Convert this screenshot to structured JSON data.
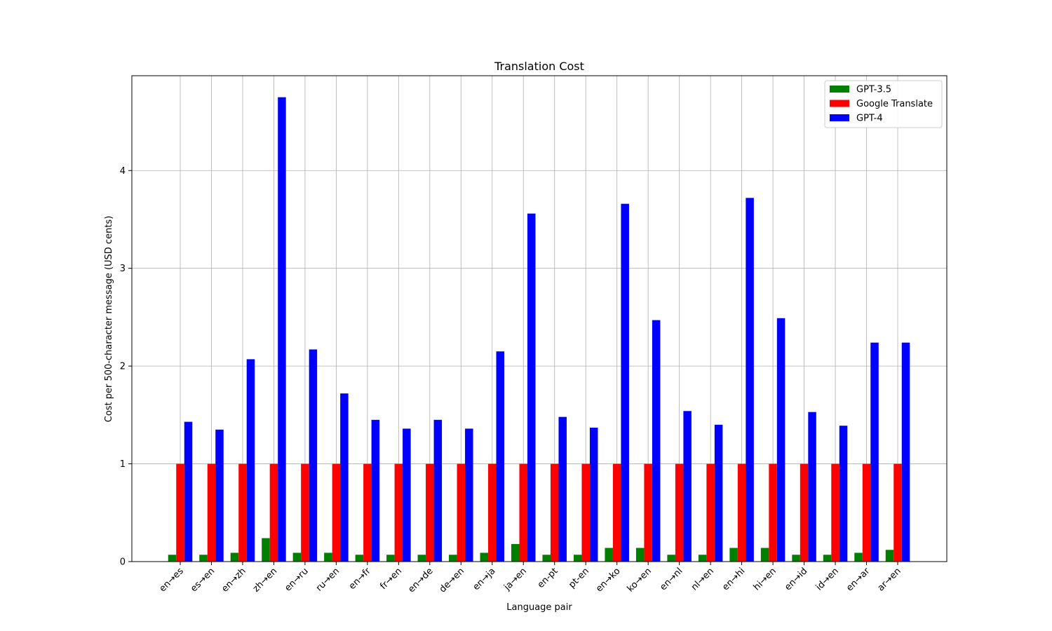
{
  "chart_data": {
    "type": "bar",
    "title": "Translation Cost",
    "xlabel": "Language pair",
    "ylabel": "Cost per 500-character message (USD cents)",
    "ylim": [
      0,
      4.97
    ],
    "yticks": [
      0,
      1,
      2,
      3,
      4
    ],
    "grid": true,
    "legend_position": "top-right",
    "categories": [
      "en→es",
      "es→en",
      "en→zh",
      "zh→en",
      "en→ru",
      "ru→en",
      "en→fr",
      "fr→en",
      "en→de",
      "de→en",
      "en→ja",
      "ja→en",
      "en-pt",
      "pt-en",
      "en→ko",
      "ko→en",
      "en→nl",
      "nl→en",
      "en→hi",
      "hi→en",
      "en→id",
      "id→en",
      "en→ar",
      "ar→en"
    ],
    "series": [
      {
        "name": "GPT-3.5",
        "color": "#008000",
        "values": [
          0.07,
          0.07,
          0.09,
          0.24,
          0.09,
          0.09,
          0.07,
          0.07,
          0.07,
          0.07,
          0.09,
          0.18,
          0.07,
          0.07,
          0.14,
          0.14,
          0.07,
          0.07,
          0.14,
          0.14,
          0.07,
          0.07,
          0.09,
          0.12
        ]
      },
      {
        "name": "Google Translate",
        "color": "#ff0000",
        "values": [
          1,
          1,
          1,
          1,
          1,
          1,
          1,
          1,
          1,
          1,
          1,
          1,
          1,
          1,
          1,
          1,
          1,
          1,
          1,
          1,
          1,
          1,
          1,
          1
        ]
      },
      {
        "name": "GPT-4",
        "color": "#0000ff",
        "values": [
          1.43,
          1.35,
          2.07,
          4.75,
          2.17,
          1.72,
          1.45,
          1.36,
          1.45,
          1.36,
          2.15,
          3.56,
          1.48,
          1.37,
          3.66,
          2.47,
          1.54,
          1.4,
          3.72,
          2.49,
          1.53,
          1.39,
          2.24,
          2.24
        ]
      }
    ]
  }
}
